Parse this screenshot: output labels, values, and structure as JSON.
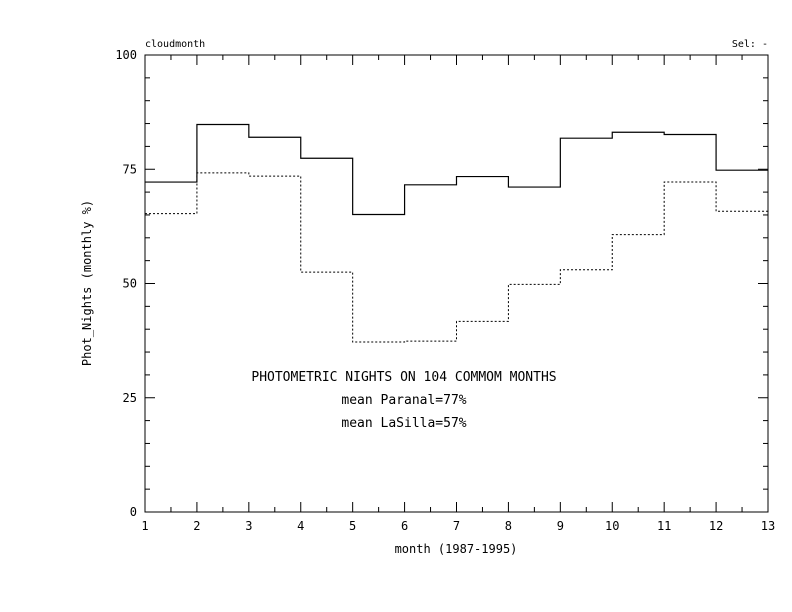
{
  "chart_data": {
    "type": "line",
    "step": true,
    "header_left": "cloudmonth",
    "header_right": "Sel: -",
    "xlabel": "month (1987-1995)",
    "ylabel": "Phot_Nights (monthly %)",
    "xlim": [
      1,
      13
    ],
    "ylim": [
      0,
      100
    ],
    "xticks": [
      1,
      2,
      3,
      4,
      5,
      6,
      7,
      8,
      9,
      10,
      11,
      12,
      13
    ],
    "yticks": [
      0,
      25,
      50,
      75,
      100
    ],
    "grid": false,
    "annotations": [
      "PHOTOMETRIC NIGHTS ON 104 COMMOM MONTHS",
      "mean Paranal=77%",
      "mean LaSilla=57%"
    ],
    "x_edges": [
      1,
      2,
      3,
      4,
      5,
      6,
      7,
      8,
      9,
      10,
      11,
      12,
      13
    ],
    "series": [
      {
        "style": "solid",
        "values": [
          72.2,
          84.8,
          82,
          77.4,
          65.1,
          71.6,
          73.4,
          71.1,
          81.8,
          83.1,
          82.6,
          74.8
        ]
      },
      {
        "style": "dotted",
        "values": [
          65.3,
          74.2,
          73.5,
          52.5,
          37.2,
          37.4,
          41.7,
          49.8,
          53,
          60.7,
          72.2,
          65.8
        ]
      }
    ]
  }
}
